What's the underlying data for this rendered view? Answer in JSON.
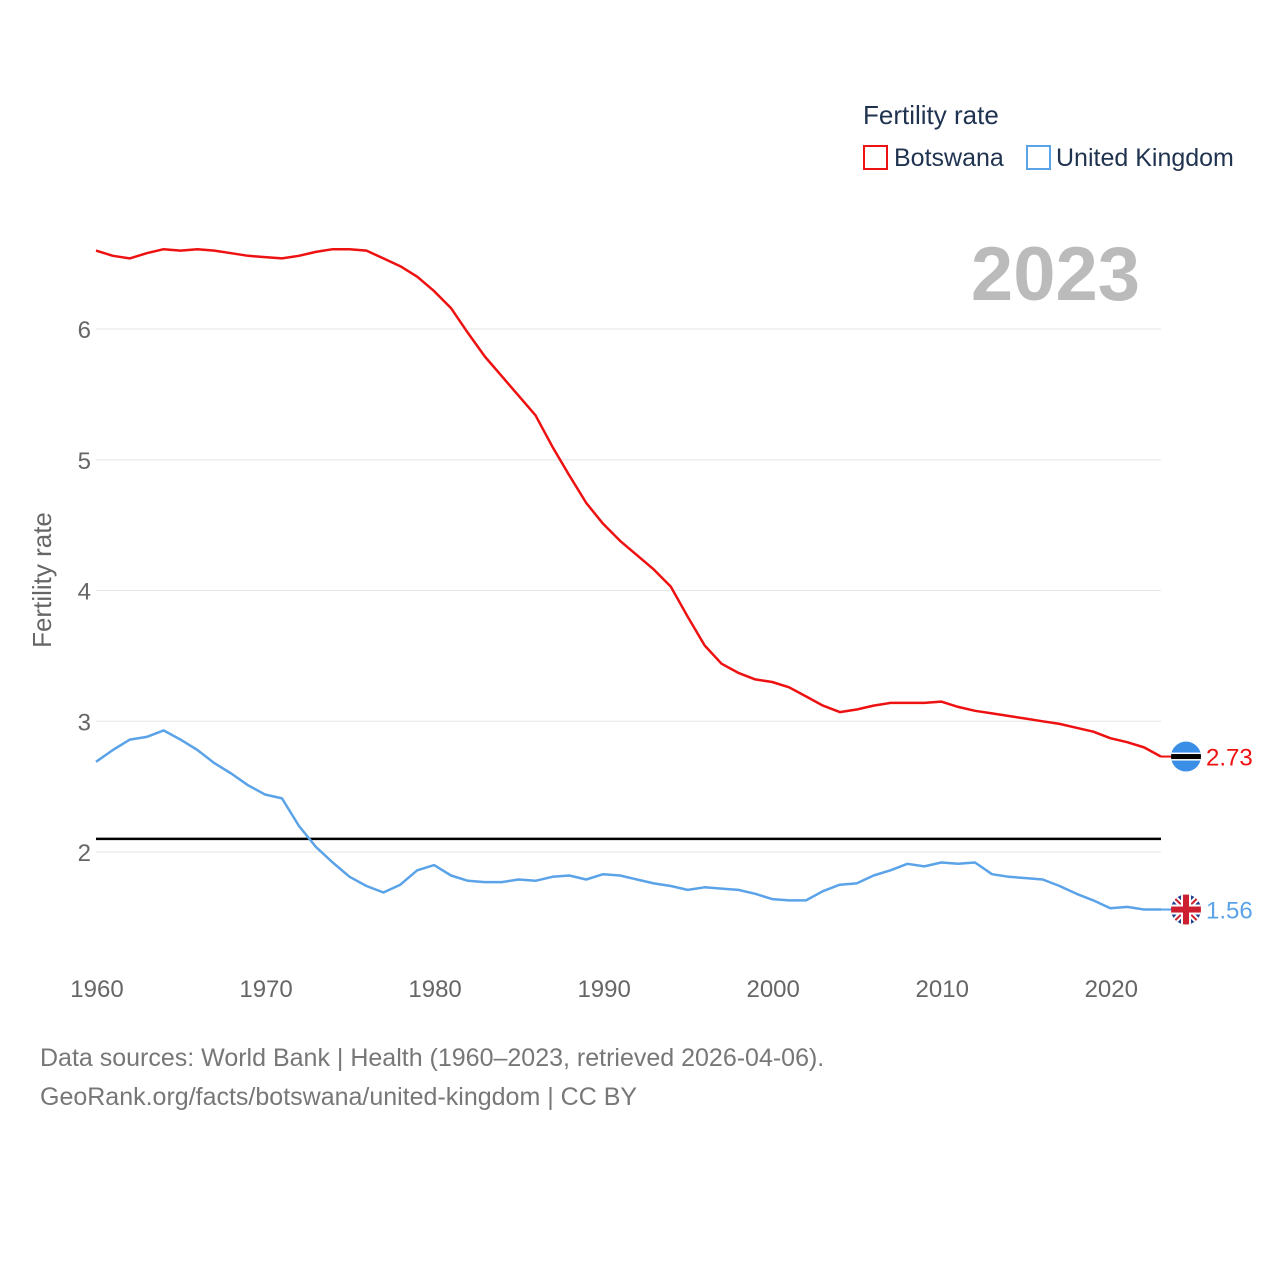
{
  "chart_data": {
    "type": "line",
    "legend": {
      "title": "Fertility rate",
      "position": "top-right"
    },
    "ylabel": "Fertility rate",
    "xlabel": "",
    "year_label": "2023",
    "xlim": [
      1960,
      2023
    ],
    "ylim": [
      1.2,
      7.0
    ],
    "x_ticks": [
      1960,
      1970,
      1980,
      1990,
      2000,
      2010,
      2020
    ],
    "y_ticks": [
      2,
      3,
      4,
      5,
      6
    ],
    "reference_line": {
      "value": 2.1,
      "color": "#000000"
    },
    "years": [
      1960,
      1961,
      1962,
      1963,
      1964,
      1965,
      1966,
      1967,
      1968,
      1969,
      1970,
      1971,
      1972,
      1973,
      1974,
      1975,
      1976,
      1977,
      1978,
      1979,
      1980,
      1981,
      1982,
      1983,
      1984,
      1985,
      1986,
      1987,
      1988,
      1989,
      1990,
      1991,
      1992,
      1993,
      1994,
      1995,
      1996,
      1997,
      1998,
      1999,
      2000,
      2001,
      2002,
      2003,
      2004,
      2005,
      2006,
      2007,
      2008,
      2009,
      2010,
      2011,
      2012,
      2013,
      2014,
      2015,
      2016,
      2017,
      2018,
      2019,
      2020,
      2021,
      2022,
      2023
    ],
    "series": [
      {
        "name": "Botswana",
        "color": "#ee1111",
        "end_label": "2.73",
        "flag": "botswana-flag-icon",
        "values": [
          6.6,
          6.56,
          6.54,
          6.58,
          6.61,
          6.6,
          6.61,
          6.6,
          6.58,
          6.56,
          6.55,
          6.54,
          6.56,
          6.59,
          6.61,
          6.61,
          6.6,
          6.54,
          6.48,
          6.4,
          6.29,
          6.16,
          5.97,
          5.79,
          5.64,
          5.49,
          5.34,
          5.1,
          4.88,
          4.67,
          4.51,
          4.38,
          4.27,
          4.16,
          4.03,
          3.8,
          3.58,
          3.44,
          3.37,
          3.32,
          3.3,
          3.26,
          3.19,
          3.12,
          3.07,
          3.09,
          3.12,
          3.14,
          3.14,
          3.14,
          3.15,
          3.11,
          3.08,
          3.06,
          3.04,
          3.02,
          3.0,
          2.98,
          2.95,
          2.92,
          2.87,
          2.84,
          2.8,
          2.73
        ]
      },
      {
        "name": "United Kingdom",
        "color": "#5ba3e8",
        "end_label": "1.56",
        "flag": "united-kingdom-flag-icon",
        "values": [
          2.69,
          2.78,
          2.86,
          2.88,
          2.93,
          2.86,
          2.78,
          2.68,
          2.6,
          2.51,
          2.44,
          2.41,
          2.2,
          2.04,
          1.92,
          1.81,
          1.74,
          1.69,
          1.75,
          1.86,
          1.9,
          1.82,
          1.78,
          1.77,
          1.77,
          1.79,
          1.78,
          1.81,
          1.82,
          1.79,
          1.83,
          1.82,
          1.79,
          1.76,
          1.74,
          1.71,
          1.73,
          1.72,
          1.71,
          1.68,
          1.64,
          1.63,
          1.63,
          1.7,
          1.75,
          1.76,
          1.82,
          1.86,
          1.91,
          1.89,
          1.92,
          1.91,
          1.92,
          1.83,
          1.81,
          1.8,
          1.79,
          1.74,
          1.68,
          1.63,
          1.57,
          1.58,
          1.56,
          1.56
        ]
      }
    ]
  },
  "footer": {
    "line1": "Data sources: World Bank | Health (1960–2023, retrieved 2026-04-06).",
    "line2": "GeoRank.org/facts/botswana/united-kingdom | CC BY"
  }
}
